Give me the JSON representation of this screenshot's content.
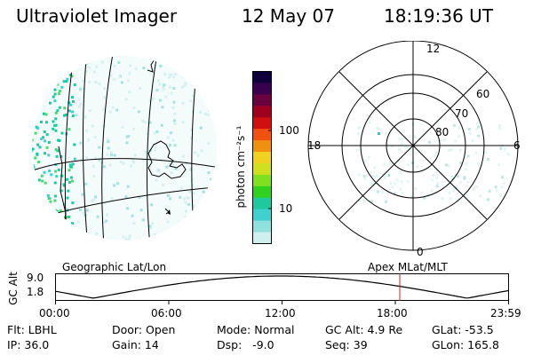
{
  "header": {
    "title": "Ultraviolet Imager",
    "date": "12 May 07",
    "time": "18:19:36 UT"
  },
  "colorbar": {
    "unit_label": "photon cm⁻²s⁻¹",
    "ticks": [
      "100",
      "10"
    ],
    "colors": [
      "#10003a",
      "#3a0050",
      "#6a0040",
      "#a00020",
      "#d01010",
      "#f05010",
      "#f09010",
      "#f0d020",
      "#d0e020",
      "#80e020",
      "#30d020",
      "#20c8a0",
      "#40d0d0",
      "#90e0e0",
      "#d0f0f0"
    ]
  },
  "polar_plot": {
    "mlt_labels": {
      "top": "12",
      "left": "18",
      "right": "6",
      "bottom": "0"
    },
    "lat_labels": [
      "60",
      "70",
      "80"
    ]
  },
  "timeline": {
    "left_title": "Geographic Lat/Lon",
    "right_title": "Apex MLat/MLT",
    "axis_label": "GC Alt",
    "y_ticks": [
      "9.0",
      "1.8"
    ],
    "x_ticks": [
      "00:00",
      "06:00",
      "12:00",
      "18:00",
      "23:59"
    ]
  },
  "info": {
    "row1": [
      "Flt: LBHL",
      "Door: Open",
      "Mode: Normal",
      "GC Alt: 4.9 Re",
      "GLat: -53.5"
    ],
    "row2": [
      "IP: 36.0",
      "Gain: 14",
      "Dsp:   -9.0",
      "Seq: 39",
      "GLon: 165.8"
    ]
  }
}
